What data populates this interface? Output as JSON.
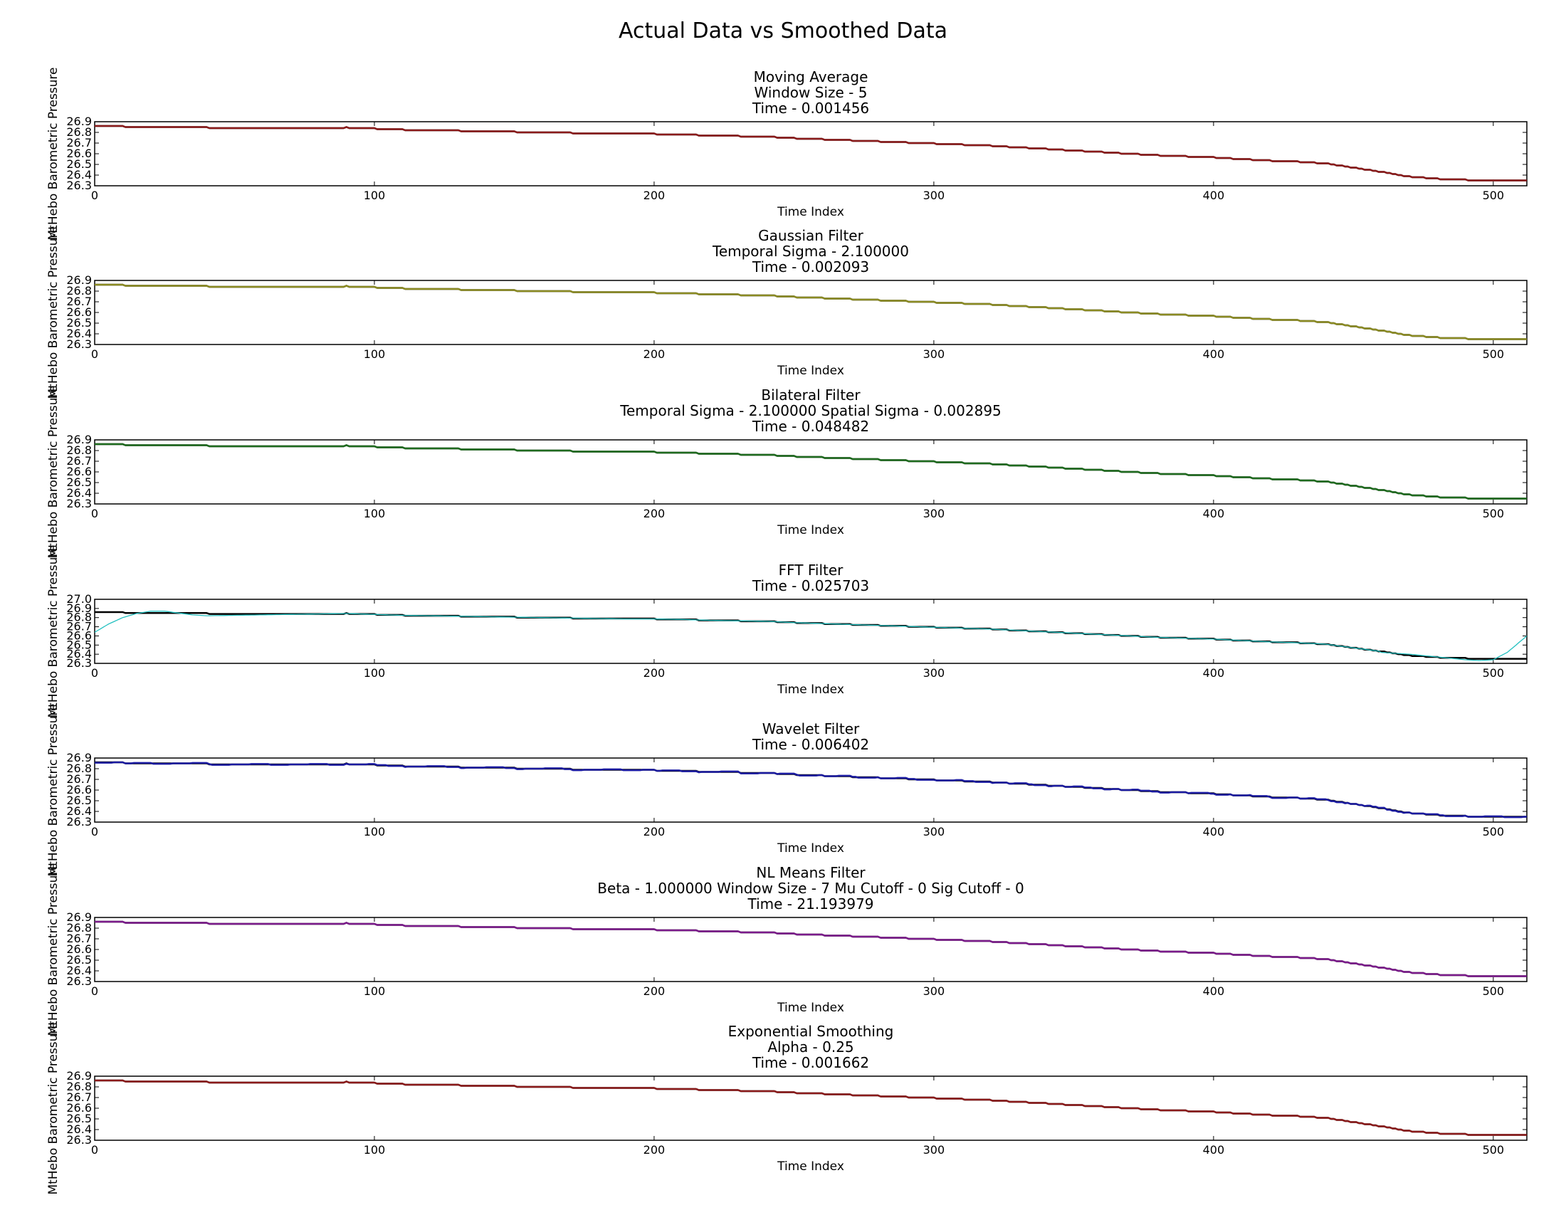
{
  "figure": {
    "title": "Actual Data vs Smoothed Data",
    "ylabel": "MtHebo Barometric Pressure",
    "xlabel": "Time Index"
  },
  "colors": {
    "actual": "#000000",
    "moving_average": "#8b1a1a",
    "gaussian": "#8b8b22",
    "bilateral": "#1e6b1e",
    "fft": "#22c0c0",
    "wavelet": "#1a1aa0",
    "nl_means": "#7b1a8b",
    "exponential": "#8b1a1a"
  },
  "chart_data": [
    {
      "type": "line",
      "title": [
        "Moving Average",
        "Window Size - 5",
        "Time - 0.001456"
      ],
      "xlabel": "Time Index",
      "ylabel": "MtHebo Barometric Pressure",
      "xlim": [
        0,
        512
      ],
      "ylim": [
        26.3,
        26.9
      ],
      "xticks": [
        0,
        100,
        200,
        300,
        400,
        500
      ],
      "yticks": [
        "26.3",
        "26.4",
        "26.5",
        "26.6",
        "26.7",
        "26.8",
        "26.9"
      ],
      "series": [
        {
          "color_key": "actual",
          "width": 2.5
        },
        {
          "color_key": "moving_average",
          "width": 2.5
        }
      ]
    },
    {
      "type": "line",
      "title": [
        "Gaussian Filter",
        "Temporal Sigma - 2.100000",
        "Time - 0.002093"
      ],
      "xlabel": "Time Index",
      "ylabel": "MtHebo Barometric Pressure",
      "xlim": [
        0,
        512
      ],
      "ylim": [
        26.3,
        26.9
      ],
      "xticks": [
        0,
        100,
        200,
        300,
        400,
        500
      ],
      "yticks": [
        "26.3",
        "26.4",
        "26.5",
        "26.6",
        "26.7",
        "26.8",
        "26.9"
      ],
      "series": [
        {
          "color_key": "actual",
          "width": 2.5
        },
        {
          "color_key": "gaussian",
          "width": 2.5
        }
      ]
    },
    {
      "type": "line",
      "title": [
        "Bilateral Filter",
        "Temporal Sigma - 2.100000  Spatial Sigma - 0.002895",
        "Time - 0.048482"
      ],
      "xlabel": "Time Index",
      "ylabel": "MtHebo Barometric Pressure",
      "xlim": [
        0,
        512
      ],
      "ylim": [
        26.3,
        26.9
      ],
      "xticks": [
        0,
        100,
        200,
        300,
        400,
        500
      ],
      "yticks": [
        "26.3",
        "26.4",
        "26.5",
        "26.6",
        "26.7",
        "26.8",
        "26.9"
      ],
      "series": [
        {
          "color_key": "actual",
          "width": 2.5
        },
        {
          "color_key": "bilateral",
          "width": 2.5
        }
      ]
    },
    {
      "type": "line",
      "title": [
        "FFT Filter",
        "Time - 0.025703"
      ],
      "xlabel": "Time Index",
      "ylabel": "MtHebo Barometric Pressure",
      "xlim": [
        0,
        512
      ],
      "ylim": [
        26.3,
        27.0
      ],
      "xticks": [
        0,
        100,
        200,
        300,
        400,
        500
      ],
      "yticks": [
        "26.3",
        "26.4",
        "26.5",
        "26.6",
        "26.7",
        "26.8",
        "26.9",
        "27.0"
      ],
      "series": [
        {
          "color_key": "actual",
          "width": 2.5
        },
        {
          "color_key": "fft",
          "width": 1.3
        }
      ]
    },
    {
      "type": "line",
      "title": [
        "Wavelet Filter",
        "Time - 0.006402"
      ],
      "xlabel": "Time Index",
      "ylabel": "MtHebo Barometric Pressure",
      "xlim": [
        0,
        512
      ],
      "ylim": [
        26.3,
        26.9
      ],
      "xticks": [
        0,
        100,
        200,
        300,
        400,
        500
      ],
      "yticks": [
        "26.3",
        "26.4",
        "26.5",
        "26.6",
        "26.7",
        "26.8",
        "26.9"
      ],
      "series": [
        {
          "color_key": "actual",
          "width": 2.5
        },
        {
          "color_key": "wavelet",
          "width": 2.5
        }
      ]
    },
    {
      "type": "line",
      "title": [
        "NL Means Filter",
        "Beta - 1.000000  Window Size - 7  Mu Cutoff - 0  Sig Cutoff - 0",
        "Time - 21.193979"
      ],
      "xlabel": "Time Index",
      "ylabel": "MtHebo Barometric Pressure",
      "xlim": [
        0,
        512
      ],
      "ylim": [
        26.3,
        26.9
      ],
      "xticks": [
        0,
        100,
        200,
        300,
        400,
        500
      ],
      "yticks": [
        "26.3",
        "26.4",
        "26.5",
        "26.6",
        "26.7",
        "26.8",
        "26.9"
      ],
      "series": [
        {
          "color_key": "actual",
          "width": 2.5
        },
        {
          "color_key": "nl_means",
          "width": 2.5
        }
      ]
    },
    {
      "type": "line",
      "title": [
        "Exponential Smoothing",
        "Alpha - 0.25",
        "Time - 0.001662"
      ],
      "xlabel": "Time Index",
      "ylabel": "MtHebo Barometric Pressure",
      "xlim": [
        0,
        512
      ],
      "ylim": [
        26.3,
        26.9
      ],
      "xticks": [
        0,
        100,
        200,
        300,
        400,
        500
      ],
      "yticks": [
        "26.3",
        "26.4",
        "26.5",
        "26.6",
        "26.7",
        "26.8",
        "26.9"
      ],
      "series": [
        {
          "color_key": "actual",
          "width": 2.5
        },
        {
          "color_key": "exponential",
          "width": 2.5
        }
      ]
    }
  ],
  "pressure_trend": {
    "x": [
      0,
      10,
      20,
      30,
      40,
      50,
      60,
      70,
      80,
      90,
      100,
      110,
      120,
      130,
      140,
      150,
      160,
      170,
      180,
      190,
      200,
      210,
      220,
      230,
      240,
      250,
      260,
      270,
      280,
      290,
      300,
      310,
      320,
      330,
      340,
      350,
      360,
      370,
      380,
      390,
      400,
      410,
      420,
      430,
      440,
      450,
      460,
      470,
      480,
      490,
      500,
      512
    ],
    "y": [
      26.86,
      26.855,
      26.85,
      26.85,
      26.845,
      26.84,
      26.84,
      26.835,
      26.835,
      26.845,
      26.835,
      26.825,
      26.82,
      26.815,
      26.81,
      26.805,
      26.8,
      26.795,
      26.79,
      26.785,
      26.785,
      26.78,
      26.77,
      26.765,
      26.76,
      26.745,
      26.735,
      26.725,
      26.715,
      26.705,
      26.695,
      26.685,
      26.675,
      26.66,
      26.645,
      26.63,
      26.615,
      26.6,
      26.585,
      26.575,
      26.565,
      26.55,
      26.535,
      26.525,
      26.51,
      26.47,
      26.43,
      26.385,
      26.365,
      26.355,
      26.345,
      26.345
    ]
  },
  "fft_curve": {
    "x": [
      0,
      5,
      10,
      15,
      20,
      25,
      30,
      35,
      40,
      50,
      60,
      70,
      80,
      90,
      100,
      460,
      470,
      480,
      490,
      495,
      500,
      505,
      512
    ],
    "y": [
      26.64,
      26.73,
      26.8,
      26.845,
      26.87,
      26.87,
      26.85,
      26.83,
      26.82,
      26.825,
      26.83,
      26.835,
      26.84,
      26.845,
      26.835,
      26.42,
      26.4,
      26.37,
      26.34,
      26.33,
      26.34,
      26.42,
      26.6
    ]
  }
}
